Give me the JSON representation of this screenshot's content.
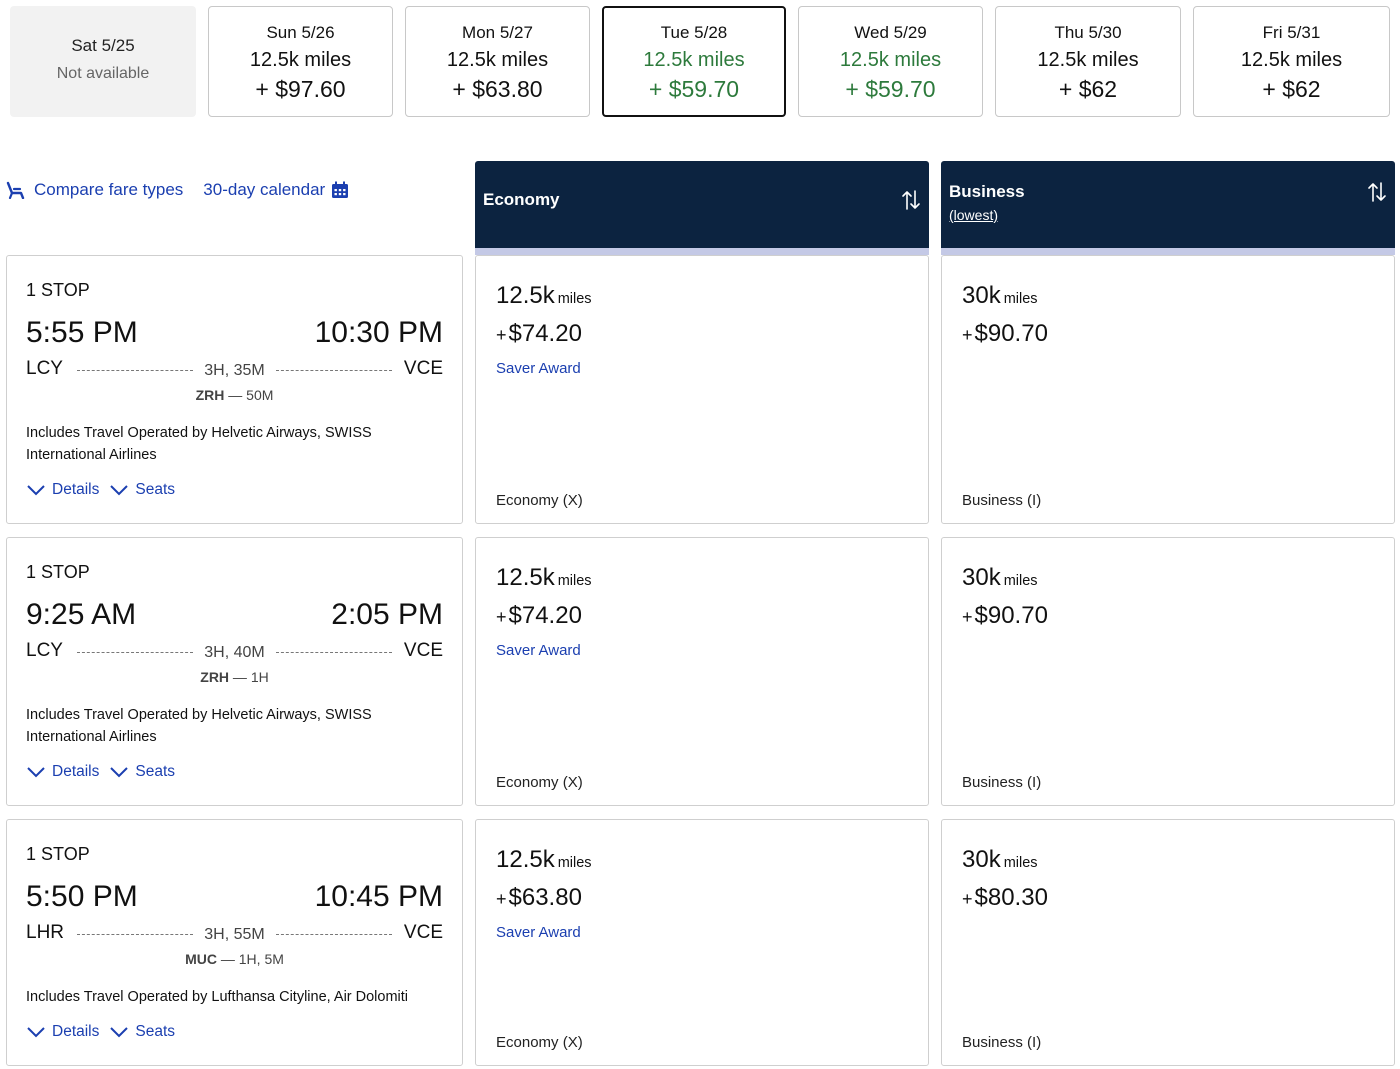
{
  "dates": [
    {
      "label": "Sat 5/25",
      "status": "Not available"
    },
    {
      "label": "Sun 5/26",
      "miles": "12.5k miles",
      "price": "+ $97.60"
    },
    {
      "label": "Mon 5/27",
      "miles": "12.5k miles",
      "price": "+ $63.80"
    },
    {
      "label": "Tue 5/28",
      "miles": "12.5k miles",
      "price": "+ $59.70"
    },
    {
      "label": "Wed 5/29",
      "miles": "12.5k miles",
      "price": "+ $59.70"
    },
    {
      "label": "Thu 5/30",
      "miles": "12.5k miles",
      "price": "+ $62"
    },
    {
      "label": "Fri 5/31",
      "miles": "12.5k miles",
      "price": "+ $62"
    }
  ],
  "selected_date": "Tue 5/28",
  "links": {
    "compare": "Compare fare types",
    "calendar": "30-day calendar"
  },
  "columns": {
    "economy": {
      "title": "Economy"
    },
    "business": {
      "title": "Business",
      "subtitle": "(lowest)"
    }
  },
  "actions": {
    "details": "Details",
    "seats": "Seats"
  },
  "flights": [
    {
      "stops": "1 STOP",
      "depart_time": "5:55 PM",
      "arrive_time": "10:30 PM",
      "origin": "LCY",
      "destination": "VCE",
      "duration": "3H, 35M",
      "connection_airport": "ZRH",
      "connection_time": " — 50M",
      "operated_by": "Includes Travel Operated by Helvetic Airways, SWISS International Airlines",
      "economy": {
        "miles": "12.5k",
        "unit": "miles",
        "price": "$74.20",
        "award": "Saver Award",
        "cabin": "Economy (X)"
      },
      "business": {
        "miles": "30k",
        "unit": "miles",
        "price": "$90.70",
        "cabin": "Business (I)"
      }
    },
    {
      "stops": "1 STOP",
      "depart_time": "9:25 AM",
      "arrive_time": "2:05 PM",
      "origin": "LCY",
      "destination": "VCE",
      "duration": "3H, 40M",
      "connection_airport": "ZRH",
      "connection_time": " — 1H",
      "operated_by": "Includes Travel Operated by Helvetic Airways, SWISS International Airlines",
      "economy": {
        "miles": "12.5k",
        "unit": "miles",
        "price": "$74.20",
        "award": "Saver Award",
        "cabin": "Economy (X)"
      },
      "business": {
        "miles": "30k",
        "unit": "miles",
        "price": "$90.70",
        "cabin": "Business (I)"
      }
    },
    {
      "stops": "1 STOP",
      "depart_time": "5:50 PM",
      "arrive_time": "10:45 PM",
      "origin": "LHR",
      "destination": "VCE",
      "duration": "3H, 55M",
      "connection_airport": "MUC",
      "connection_time": " — 1H, 5M",
      "operated_by": "Includes Travel Operated by Lufthansa Cityline, Air Dolomiti",
      "economy": {
        "miles": "12.5k",
        "unit": "miles",
        "price": "$63.80",
        "award": "Saver Award",
        "cabin": "Economy (X)"
      },
      "business": {
        "miles": "30k",
        "unit": "miles",
        "price": "$80.30",
        "cabin": "Business (I)"
      }
    }
  ],
  "colors": {
    "navy": "#0c2340",
    "link": "#1b3fb0",
    "green": "#2d7a3c"
  }
}
